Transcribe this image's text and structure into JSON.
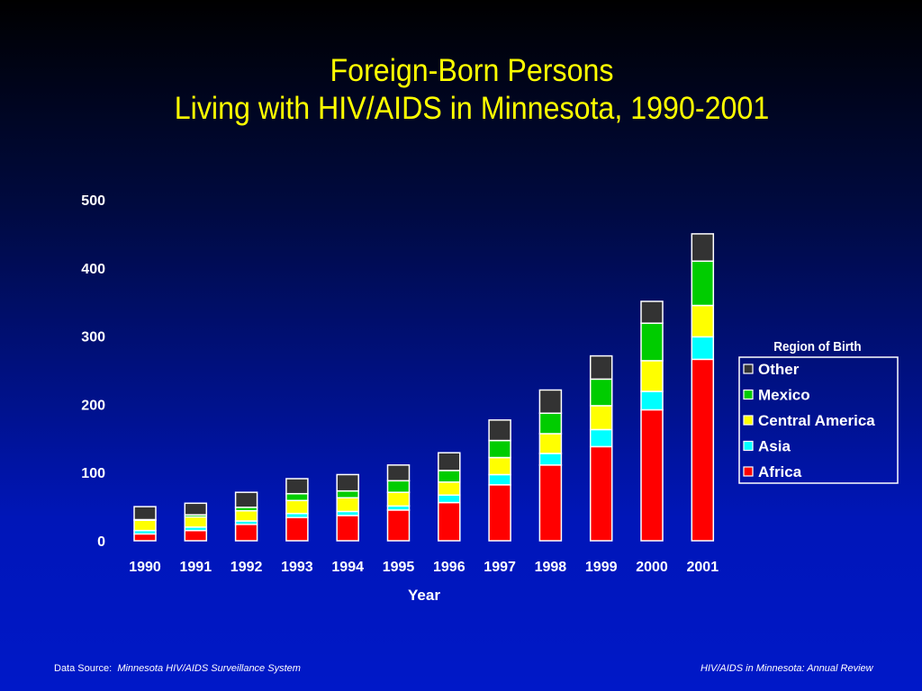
{
  "title": {
    "line1": "Foreign-Born Persons",
    "line2": "Living with HIV/AIDS in Minnesota, 1990-2001"
  },
  "footer": {
    "source_label": "Data Source:",
    "source_value": "Minnesota HIV/AIDS Surveillance System",
    "right": "HIV/AIDS in Minnesota: Annual Review"
  },
  "chart_data": {
    "type": "bar",
    "stacked": true,
    "title": "Foreign-Born Persons Living with HIV/AIDS in Minnesota, 1990-2001",
    "xlabel": "Year",
    "ylabel": "",
    "ylim": [
      0,
      500
    ],
    "yticks": [
      0,
      100,
      200,
      300,
      400,
      500
    ],
    "grid": false,
    "categories": [
      "1990",
      "1991",
      "1992",
      "1993",
      "1994",
      "1995",
      "1996",
      "1997",
      "1998",
      "1999",
      "2000",
      "2001"
    ],
    "legend": {
      "title": "Region of Birth",
      "placement": "right",
      "order": [
        "Other",
        "Mexico",
        "Central America",
        "Asia",
        "Africa"
      ]
    },
    "series": [
      {
        "name": "Africa",
        "color": "#ff0000",
        "values": [
          10,
          15,
          24,
          34,
          37,
          45,
          56,
          82,
          111,
          138,
          192,
          266
        ]
      },
      {
        "name": "Asia",
        "color": "#00ffff",
        "values": [
          5,
          5,
          5,
          6,
          6,
          6,
          11,
          15,
          17,
          25,
          27,
          33
        ]
      },
      {
        "name": "Central America",
        "color": "#ffff00",
        "values": [
          15,
          15,
          15,
          19,
          20,
          20,
          19,
          25,
          29,
          35,
          45,
          46
        ]
      },
      {
        "name": "Mexico",
        "color": "#00cc00",
        "values": [
          1,
          3,
          5,
          10,
          10,
          17,
          17,
          25,
          30,
          39,
          55,
          65
        ]
      },
      {
        "name": "Other",
        "color": "#333333",
        "values": [
          19,
          17,
          22,
          22,
          24,
          23,
          26,
          30,
          34,
          34,
          32,
          40
        ]
      }
    ]
  }
}
